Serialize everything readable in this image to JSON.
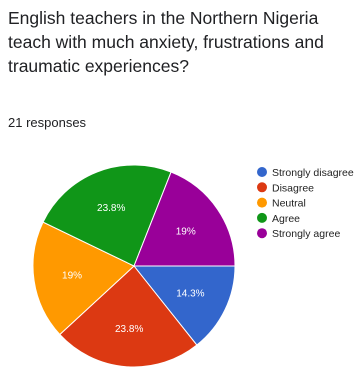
{
  "question": {
    "title": "English teachers in the Northern Nigeria teach with much anxiety, frustrations and traumatic experiences?",
    "responses": "21 responses"
  },
  "chart_data": {
    "type": "pie",
    "legend_position": "right",
    "start_angle_deg": 90,
    "direction": "clockwise",
    "order": [
      "Strongly disagree",
      "Disagree",
      "Neutral",
      "Agree",
      "Strongly agree"
    ],
    "slices": [
      {
        "name": "Strongly disagree",
        "value": 14.3,
        "label": "14.3%",
        "color": "#3366cc"
      },
      {
        "name": "Disagree",
        "value": 23.8,
        "label": "23.8%",
        "color": "#dc3912"
      },
      {
        "name": "Neutral",
        "value": 19.0,
        "label": "19%",
        "color": "#ff9900"
      },
      {
        "name": "Agree",
        "value": 23.8,
        "label": "23.8%",
        "color": "#109618"
      },
      {
        "name": "Strongly agree",
        "value": 19.0,
        "label": "19%",
        "color": "#990099"
      }
    ]
  }
}
